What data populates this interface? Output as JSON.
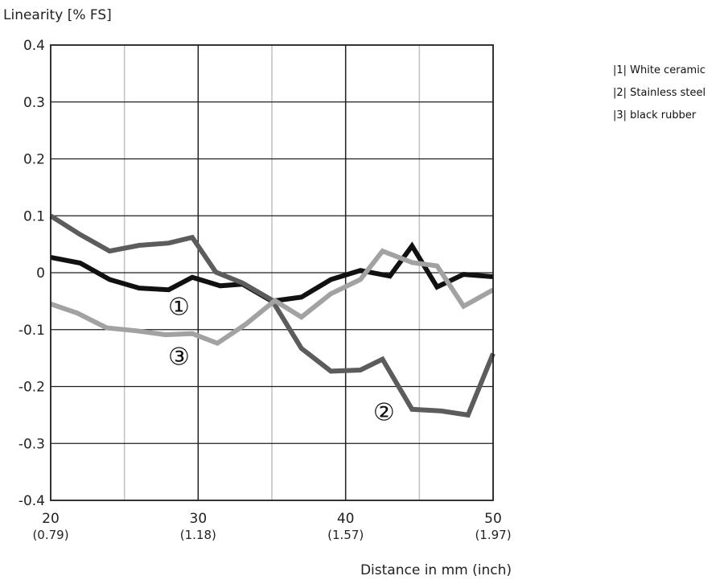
{
  "chart_data": {
    "type": "line",
    "ylabel": "Linearity [% FS]",
    "xlabel": "Distance in mm (inch)",
    "xlim": [
      20,
      50
    ],
    "ylim": [
      -0.4,
      0.4
    ],
    "x_ticks": [
      20,
      30,
      40,
      50
    ],
    "x_tick_labels": [
      "20",
      "30",
      "40",
      "50"
    ],
    "x_tick_sublabels": [
      "(0.79)",
      "(1.18)",
      "(1.57)",
      "(1.97)"
    ],
    "y_ticks": [
      0.4,
      0.3,
      0.2,
      0.1,
      0,
      -0.1,
      -0.2,
      -0.3,
      -0.4
    ],
    "y_tick_labels": [
      "0.4",
      "0.3",
      "0.2",
      "0.1",
      "0",
      "-0.1",
      "-0.2",
      "-0.3",
      "-0.4"
    ],
    "grid": true,
    "legend_position": "top-right",
    "legend": [
      "|1| White ceramic",
      "|2| Stainless steel",
      "|3| black rubber"
    ],
    "series": [
      {
        "marker": "①",
        "color": "#111111",
        "x": [
          20,
          22,
          24,
          26,
          28,
          29.6,
          31.5,
          33,
          35,
          37,
          39,
          41,
          43,
          44.5,
          46.2,
          48,
          50
        ],
        "values": [
          0.027,
          0.017,
          -0.012,
          -0.027,
          -0.03,
          -0.008,
          -0.023,
          -0.02,
          -0.05,
          -0.043,
          -0.012,
          0.004,
          -0.006,
          0.047,
          -0.025,
          -0.003,
          -0.007
        ],
        "marker_pos": [
          28.7,
          -0.06
        ]
      },
      {
        "marker": "②",
        "color": "#5c5c5c",
        "x": [
          20,
          22,
          24,
          26,
          28,
          29.6,
          31.2,
          33,
          35,
          37,
          39,
          41,
          42.5,
          44.5,
          46.5,
          48.3,
          50
        ],
        "values": [
          0.1,
          0.067,
          0.038,
          0.048,
          0.052,
          0.062,
          0.001,
          -0.018,
          -0.048,
          -0.133,
          -0.173,
          -0.171,
          -0.152,
          -0.24,
          -0.243,
          -0.25,
          -0.142
        ],
        "marker_pos": [
          42.6,
          -0.245
        ]
      },
      {
        "marker": "③",
        "color": "#a2a2a2",
        "x": [
          20,
          21.8,
          23.8,
          25.8,
          27.8,
          29.6,
          31.3,
          33.2,
          35.2,
          37,
          39,
          41,
          42.5,
          44.5,
          46.2,
          48,
          50
        ],
        "values": [
          -0.055,
          -0.071,
          -0.097,
          -0.102,
          -0.109,
          -0.107,
          -0.124,
          -0.091,
          -0.049,
          -0.078,
          -0.037,
          -0.012,
          0.038,
          0.018,
          0.012,
          -0.059,
          -0.03
        ],
        "marker_pos": [
          28.7,
          -0.148
        ]
      }
    ]
  }
}
